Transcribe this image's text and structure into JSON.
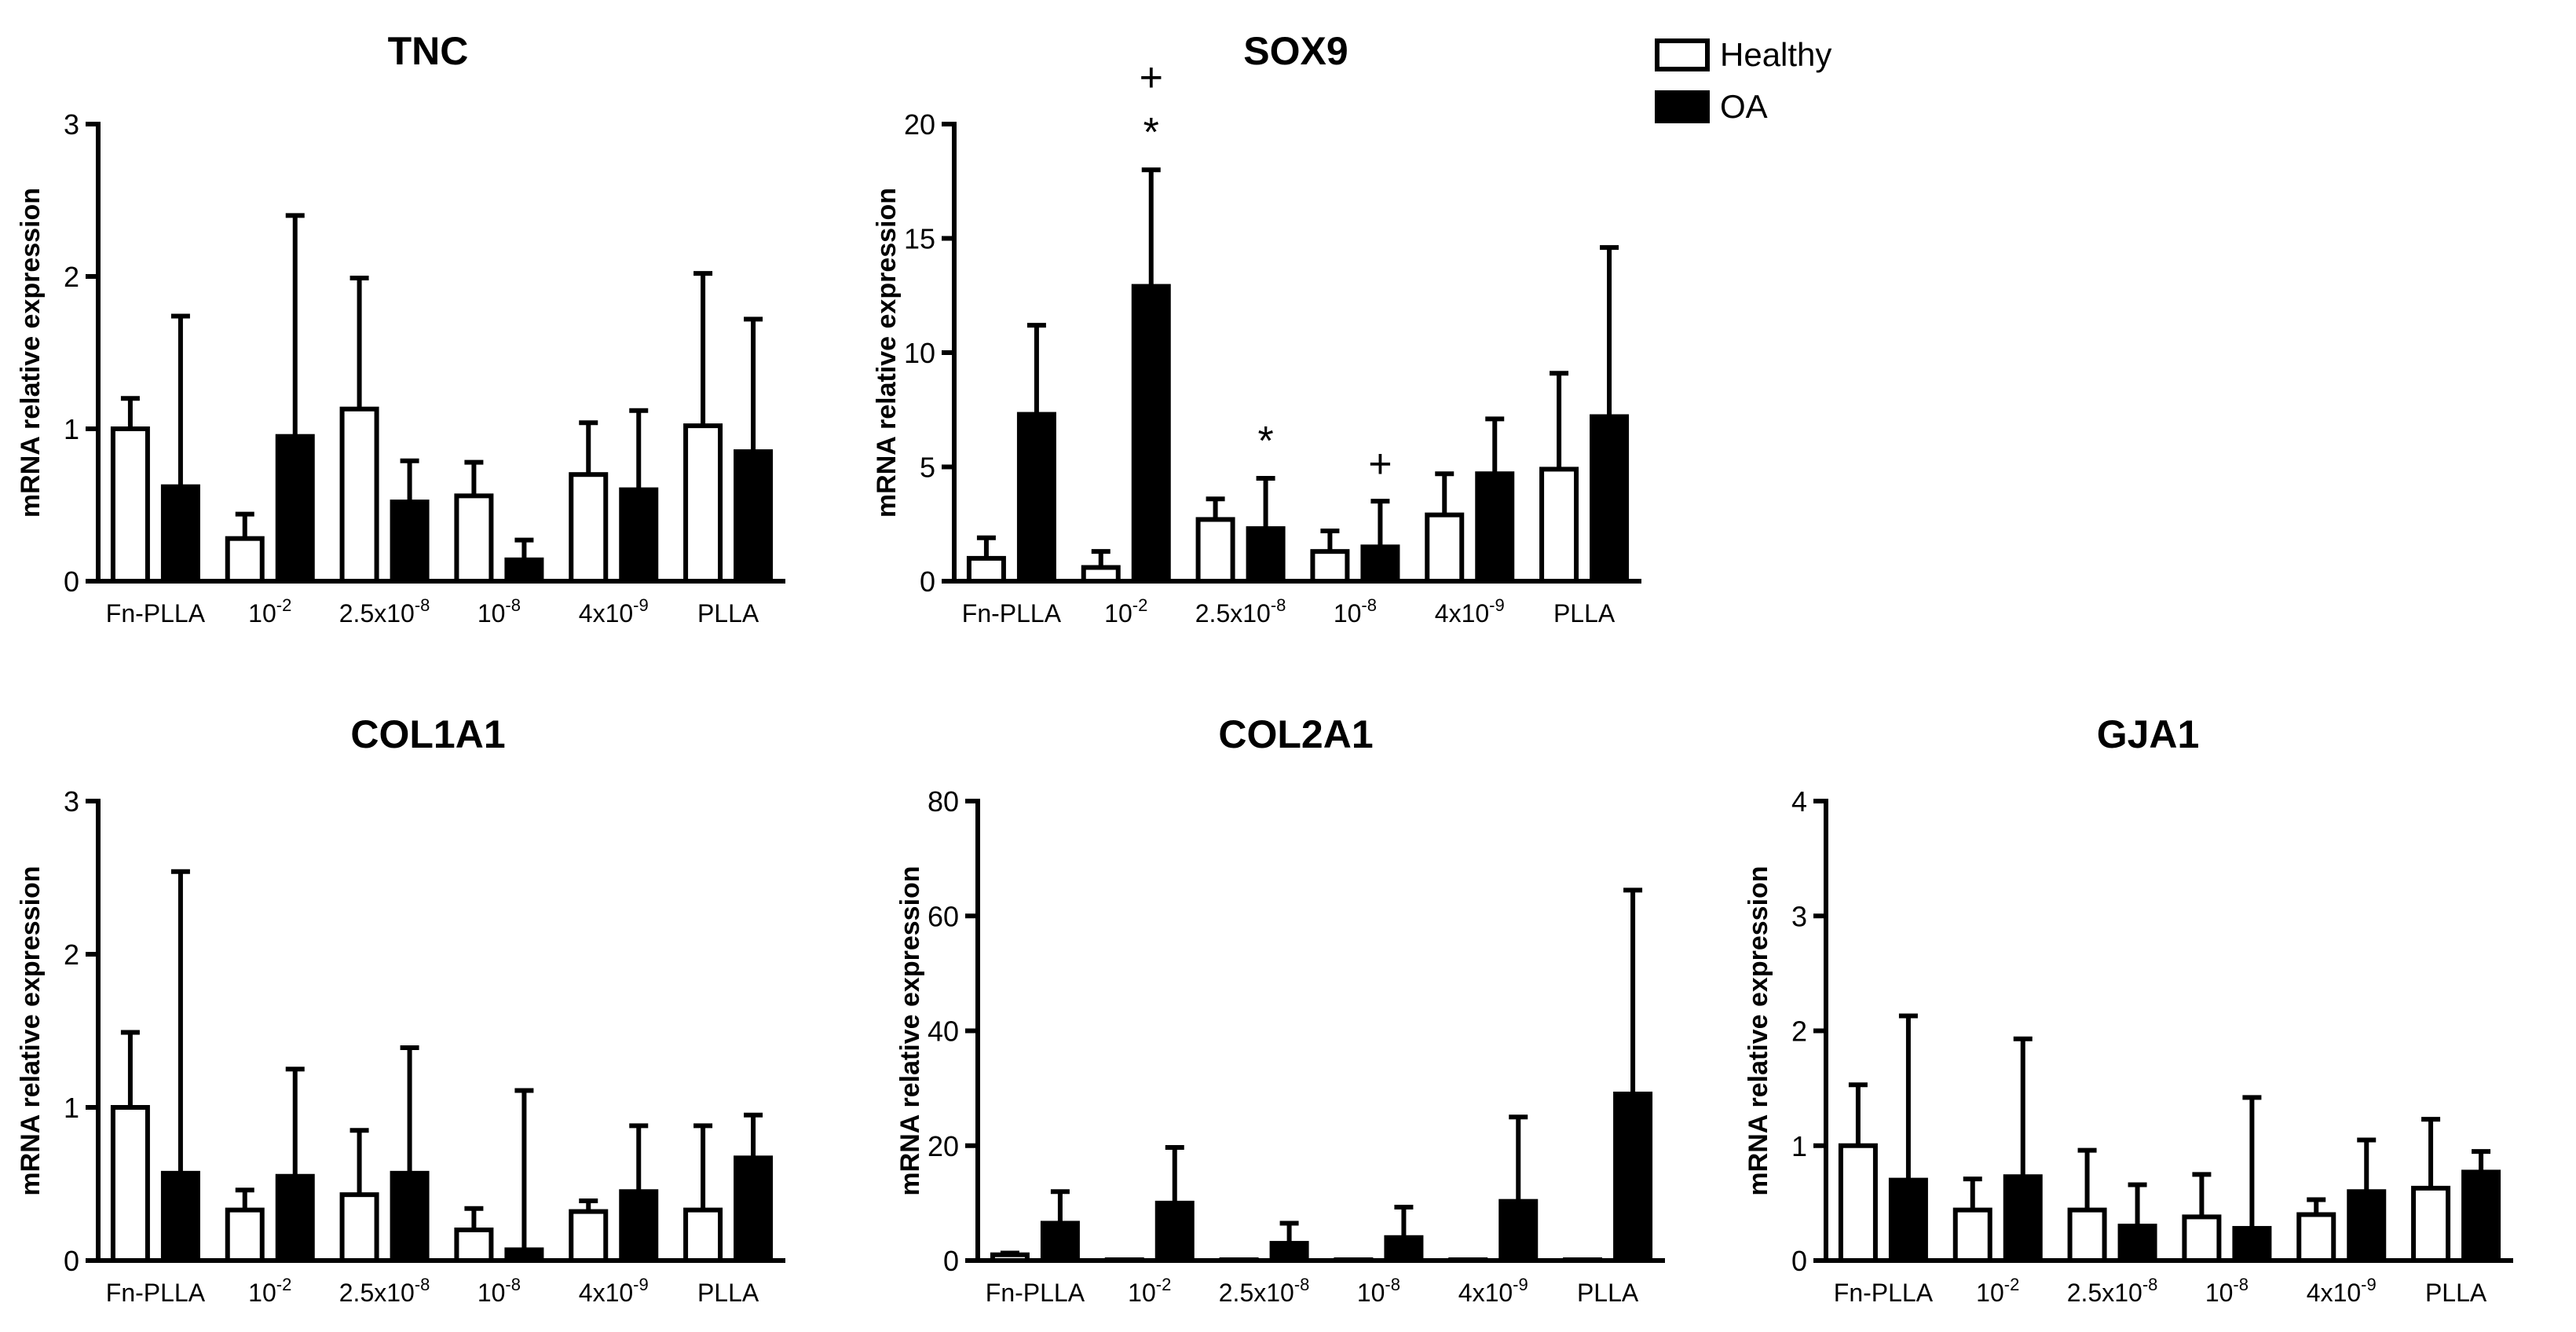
{
  "legend": {
    "healthy": "Healthy",
    "oa": "OA"
  },
  "colors": {
    "healthy_fill": "#ffffff",
    "oa_fill": "#000000",
    "stroke": "#000000"
  },
  "chart_data": [
    {
      "type": "bar",
      "title": "TNC",
      "ylabel": "mRNA relative expression",
      "ylim": [
        0,
        3
      ],
      "yticks": [
        0,
        1,
        2,
        3
      ],
      "categories": [
        "Fn-PLLA",
        "10-2",
        "2.5x10-8",
        "10-8",
        "4x10-9",
        "PLLA"
      ],
      "category_parts": [
        [
          "Fn-PLLA",
          ""
        ],
        [
          "10",
          "-2"
        ],
        [
          "2.5x10",
          "-8"
        ],
        [
          "10",
          "-8"
        ],
        [
          "4x10",
          "-9"
        ],
        [
          "PLLA",
          ""
        ]
      ],
      "series": [
        {
          "name": "Healthy",
          "values": [
            1.0,
            0.28,
            1.13,
            0.56,
            0.7,
            1.02
          ],
          "errors": [
            0.2,
            0.16,
            0.86,
            0.22,
            0.34,
            1.0
          ]
        },
        {
          "name": "OA",
          "values": [
            0.62,
            0.95,
            0.52,
            0.14,
            0.6,
            0.85
          ],
          "errors": [
            1.12,
            1.45,
            0.27,
            0.13,
            0.52,
            0.87
          ]
        }
      ],
      "annotations": []
    },
    {
      "type": "bar",
      "title": "SOX9",
      "ylabel": "mRNA relative expression",
      "ylim": [
        0,
        20
      ],
      "yticks": [
        0,
        5,
        10,
        15,
        20
      ],
      "categories": [
        "Fn-PLLA",
        "10-2",
        "2.5x10-8",
        "10-8",
        "4x10-9",
        "PLLA"
      ],
      "category_parts": [
        [
          "Fn-PLLA",
          ""
        ],
        [
          "10",
          "-2"
        ],
        [
          "2.5x10",
          "-8"
        ],
        [
          "10",
          "-8"
        ],
        [
          "4x10",
          "-9"
        ],
        [
          "PLLA",
          ""
        ]
      ],
      "series": [
        {
          "name": "Healthy",
          "values": [
            1.0,
            0.6,
            2.7,
            1.3,
            2.9,
            4.9
          ],
          "errors": [
            0.9,
            0.7,
            0.9,
            0.9,
            1.8,
            4.2
          ]
        },
        {
          "name": "OA",
          "values": [
            7.3,
            12.9,
            2.3,
            1.5,
            4.7,
            7.2
          ],
          "errors": [
            3.9,
            5.1,
            2.2,
            2.0,
            2.4,
            7.4
          ]
        }
      ],
      "annotations": [
        {
          "category": 1,
          "series": 1,
          "text": "*",
          "level": 1
        },
        {
          "category": 1,
          "series": 1,
          "text": "+",
          "level": 2
        },
        {
          "category": 2,
          "series": 1,
          "text": "*",
          "level": 1
        },
        {
          "category": 3,
          "series": 1,
          "text": "+",
          "level": 1
        }
      ]
    },
    {
      "type": "bar",
      "title": "COL1A1",
      "ylabel": "mRNA relative expression",
      "ylim": [
        0,
        3
      ],
      "yticks": [
        0,
        1,
        2,
        3
      ],
      "categories": [
        "Fn-PLLA",
        "10-2",
        "2.5x10-8",
        "10-8",
        "4x10-9",
        "PLLA"
      ],
      "category_parts": [
        [
          "Fn-PLLA",
          ""
        ],
        [
          "10",
          "-2"
        ],
        [
          "2.5x10",
          "-8"
        ],
        [
          "10",
          "-8"
        ],
        [
          "4x10",
          "-9"
        ],
        [
          "PLLA",
          ""
        ]
      ],
      "series": [
        {
          "name": "Healthy",
          "values": [
            1.0,
            0.33,
            0.43,
            0.2,
            0.32,
            0.33
          ],
          "errors": [
            0.49,
            0.13,
            0.42,
            0.14,
            0.07,
            0.55
          ]
        },
        {
          "name": "OA",
          "values": [
            0.57,
            0.55,
            0.57,
            0.07,
            0.45,
            0.67
          ],
          "errors": [
            1.97,
            0.7,
            0.82,
            1.04,
            0.43,
            0.28
          ]
        }
      ],
      "annotations": []
    },
    {
      "type": "bar",
      "title": "COL2A1",
      "ylabel": "mRNA relative expression",
      "ylim": [
        0,
        80
      ],
      "yticks": [
        0,
        20,
        40,
        60,
        80
      ],
      "categories": [
        "Fn-PLLA",
        "10-2",
        "2.5x10-8",
        "10-8",
        "4x10-9",
        "PLLA"
      ],
      "category_parts": [
        [
          "Fn-PLLA",
          ""
        ],
        [
          "10",
          "-2"
        ],
        [
          "2.5x10",
          "-8"
        ],
        [
          "10",
          "-8"
        ],
        [
          "4x10",
          "-9"
        ],
        [
          "PLLA",
          ""
        ]
      ],
      "series": [
        {
          "name": "Healthy",
          "values": [
            1.0,
            0.1,
            0.1,
            0.1,
            0.1,
            0.1
          ],
          "errors": [
            0.3,
            0,
            0,
            0,
            0,
            0
          ]
        },
        {
          "name": "OA",
          "values": [
            6.5,
            10.0,
            3.0,
            4.0,
            10.3,
            29.0
          ],
          "errors": [
            5.5,
            9.7,
            3.5,
            5.3,
            14.7,
            35.5
          ]
        }
      ],
      "annotations": []
    },
    {
      "type": "bar",
      "title": "GJA1",
      "ylabel": "mRNA relative expression",
      "ylim": [
        0,
        4
      ],
      "yticks": [
        0,
        1,
        2,
        3,
        4
      ],
      "categories": [
        "Fn-PLLA",
        "10-2",
        "2.5x10-8",
        "10-8",
        "4x10-9",
        "PLLA"
      ],
      "category_parts": [
        [
          "Fn-PLLA",
          ""
        ],
        [
          "10",
          "-2"
        ],
        [
          "2.5x10",
          "-8"
        ],
        [
          "10",
          "-8"
        ],
        [
          "4x10",
          "-9"
        ],
        [
          "PLLA",
          ""
        ]
      ],
      "series": [
        {
          "name": "Healthy",
          "values": [
            1.0,
            0.44,
            0.44,
            0.38,
            0.4,
            0.63
          ],
          "errors": [
            0.53,
            0.27,
            0.52,
            0.37,
            0.13,
            0.6
          ]
        },
        {
          "name": "OA",
          "values": [
            0.7,
            0.73,
            0.3,
            0.28,
            0.6,
            0.77
          ],
          "errors": [
            1.43,
            1.2,
            0.36,
            1.14,
            0.45,
            0.18
          ]
        }
      ],
      "annotations": []
    }
  ]
}
